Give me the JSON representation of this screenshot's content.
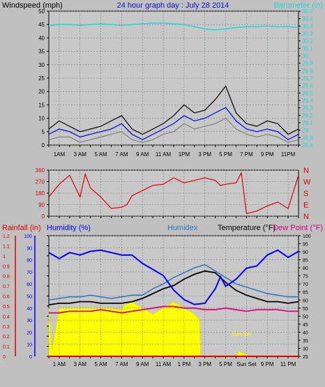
{
  "header": {
    "windspeed_label": "Windspeed (mph)",
    "title": "24 hour graph day : July 28 2014",
    "barometer_label": "Barometer (in)"
  },
  "colors": {
    "frame_bg": "#c0c0c0",
    "plot_bg": "#c8c8c8",
    "title_blue": "#1010e0",
    "barometer_cyan": "#20d8d8",
    "wind_red": "#e00000",
    "rain_red": "#e00000",
    "humidity_blue": "#0000ff",
    "humidex_teal": "#2878c0",
    "dewpoint_magenta": "#e00080",
    "sun_yellow": "#ffff00"
  },
  "x_axis": {
    "tick_labels": [
      "1AM",
      "3 AM",
      "5 AM",
      "7 AM",
      "9 AM",
      "11 AM",
      "1PM",
      "3 PM",
      "5 PM",
      "7 PM",
      "9 PM",
      "11PM"
    ],
    "hours": [
      1,
      3,
      5,
      7,
      9,
      11,
      13,
      15,
      17,
      19,
      21,
      23
    ]
  },
  "bottom_x_axis": {
    "tick_labels": [
      "1 AM",
      "3 AM",
      "5 AM",
      "7 AM",
      "9 AM",
      "11 AM",
      "1 PM",
      "3 PM",
      "5 PM",
      "Sun Set",
      "9 PM",
      "11 PM"
    ],
    "hours": [
      1,
      3,
      5,
      7,
      9,
      11,
      13,
      15,
      17,
      19,
      21,
      23
    ]
  },
  "chart_data": [
    {
      "type": "line",
      "panel": "wind_barometer",
      "xlim": [
        0,
        24
      ],
      "ylabel": "Windspeed (mph)",
      "ylim": [
        0,
        50
      ],
      "yticks": [
        0,
        5,
        10,
        15,
        20,
        25,
        30,
        35,
        40,
        45,
        50
      ],
      "y2label": "Barometer (in)",
      "y2lim": [
        28.8,
        30.6
      ],
      "y2ticks": [
        "28.8",
        "28.9",
        "29",
        "29.1",
        "29.2",
        "29.3",
        "29.4",
        "29.5",
        "29.6",
        "29.7",
        "29.8",
        "29.9",
        "30",
        "30.1",
        "30.2",
        "30.3",
        "30.4",
        "30.5",
        "30.6"
      ],
      "grid": true,
      "series": [
        {
          "name": "Barometer (in)",
          "axis": "right",
          "color": "#20d8d8",
          "x": [
            0,
            1,
            2,
            3,
            4,
            5,
            6,
            7,
            8,
            9,
            10,
            11,
            12,
            13,
            14,
            15,
            16,
            17,
            18,
            19,
            20,
            21,
            22,
            23,
            24
          ],
          "y": [
            30.41,
            30.42,
            30.42,
            30.41,
            30.42,
            30.43,
            30.42,
            30.41,
            30.42,
            30.43,
            30.44,
            30.44,
            30.43,
            30.42,
            30.39,
            30.36,
            30.35,
            30.36,
            30.38,
            30.39,
            30.39,
            30.4,
            30.39,
            30.39,
            30.38
          ]
        },
        {
          "name": "Wind gust",
          "axis": "left",
          "color": "#000000",
          "x": [
            0,
            1,
            2,
            3,
            4,
            5,
            6,
            7,
            8,
            9,
            10,
            11,
            12,
            13,
            14,
            15,
            16,
            17,
            18,
            19,
            20,
            21,
            22,
            23,
            24
          ],
          "y": [
            6,
            9,
            7,
            5,
            6,
            7,
            9,
            11,
            6,
            4,
            6,
            8,
            11,
            15,
            12,
            13,
            17,
            22,
            12,
            8,
            7,
            9,
            8,
            4,
            6
          ]
        },
        {
          "name": "Wind average",
          "axis": "left",
          "color": "#0000e0",
          "x": [
            0,
            1,
            2,
            3,
            4,
            5,
            6,
            7,
            8,
            9,
            10,
            11,
            12,
            13,
            14,
            15,
            16,
            17,
            18,
            19,
            20,
            21,
            22,
            23,
            24
          ],
          "y": [
            4,
            6,
            5,
            3,
            4,
            5,
            6,
            8,
            4,
            2,
            4,
            6,
            8,
            11,
            9,
            10,
            12,
            14,
            9,
            6,
            5,
            6,
            5,
            2,
            4
          ]
        },
        {
          "name": "Wind low",
          "axis": "left",
          "color": "#808080",
          "x": [
            0,
            1,
            2,
            3,
            4,
            5,
            6,
            7,
            8,
            9,
            10,
            11,
            12,
            13,
            14,
            15,
            16,
            17,
            18,
            19,
            20,
            21,
            22,
            23,
            24
          ],
          "y": [
            2,
            3,
            3,
            1,
            2,
            3,
            4,
            5,
            2,
            1,
            2,
            4,
            5,
            8,
            6,
            7,
            8,
            10,
            6,
            4,
            3,
            4,
            3,
            1,
            2
          ]
        }
      ]
    },
    {
      "type": "line",
      "panel": "wind_direction",
      "xlim": [
        0,
        24
      ],
      "ylim": [
        0,
        360
      ],
      "yticks": [
        0,
        90,
        180,
        270,
        360
      ],
      "right_labels": [
        "N",
        "W",
        "S",
        "E",
        "N"
      ],
      "grid": true,
      "series": [
        {
          "name": "Wind direction",
          "color": "#e00000",
          "x": [
            0,
            1,
            2,
            3,
            3.5,
            4,
            5,
            6,
            7,
            7.5,
            8,
            9,
            10,
            11,
            12,
            13,
            14,
            15,
            16,
            16.5,
            17,
            18,
            18.5,
            19,
            20,
            21,
            22,
            23,
            24
          ],
          "y": [
            150,
            250,
            320,
            150,
            330,
            220,
            150,
            60,
            70,
            90,
            160,
            200,
            240,
            250,
            300,
            260,
            280,
            300,
            280,
            240,
            250,
            260,
            340,
            20,
            40,
            80,
            110,
            60,
            320
          ]
        }
      ]
    },
    {
      "type": "line",
      "panel": "temp_humidity_rain",
      "xlim": [
        0,
        24
      ],
      "ylim": [
        0,
        100
      ],
      "yticks": [
        0,
        10,
        20,
        30,
        40,
        50,
        60,
        70,
        80,
        90,
        100
      ],
      "rain_ticks": [
        "0",
        "0.1",
        "0.2",
        "0.3",
        "0.4",
        "0.5",
        "0.6",
        "0.7",
        "0.8",
        "0.9",
        "1",
        "1.1",
        "1.2"
      ],
      "temp_ticks": [
        25,
        30,
        35,
        40,
        45,
        50,
        55,
        60,
        65,
        70,
        75,
        80,
        85,
        90,
        95,
        100
      ],
      "labels": {
        "rainfall": "Rainfall (in)",
        "humidity": "Humidity (%)",
        "humidex": "Humidex",
        "temperature": "Temperature (°F)",
        "dew_point": "Dew Point (°F)"
      },
      "annotation": "Sun Set",
      "grid": true,
      "series": [
        {
          "name": "Humidity (%)",
          "axis": "left",
          "color": "#0000ff",
          "x": [
            0,
            1,
            2,
            3,
            4,
            5,
            6,
            7,
            8,
            9,
            10,
            11,
            12,
            13,
            14,
            15,
            16,
            16.5,
            17,
            18,
            19,
            20,
            21,
            22,
            23,
            24
          ],
          "y": [
            86,
            81,
            86,
            84,
            87,
            88,
            86,
            84,
            84,
            77,
            72,
            67,
            55,
            47,
            43,
            44,
            56,
            66,
            58,
            64,
            73,
            75,
            84,
            88,
            82,
            87
          ]
        },
        {
          "name": "Humidex",
          "axis": "temp",
          "color": "#2878c0",
          "x": [
            0,
            1,
            2,
            3,
            4,
            5,
            6,
            7,
            8,
            9,
            10,
            11,
            12,
            13,
            14,
            15,
            16,
            17,
            18,
            19,
            20,
            21,
            22,
            23,
            24
          ],
          "y": [
            60,
            61,
            62,
            62,
            63,
            62,
            61,
            62,
            63,
            63,
            67,
            70,
            74,
            77,
            80,
            82,
            78,
            74,
            70,
            68,
            66,
            64,
            63,
            62,
            62
          ]
        },
        {
          "name": "Temperature (°F)",
          "axis": "temp",
          "color": "#000000",
          "x": [
            0,
            1,
            2,
            3,
            4,
            5,
            6,
            7,
            8,
            9,
            10,
            11,
            12,
            13,
            14,
            15,
            16,
            17,
            18,
            19,
            20,
            21,
            22,
            23,
            24
          ],
          "y": [
            57,
            58,
            58,
            59,
            59,
            58,
            58,
            58,
            59,
            61,
            64,
            67,
            69,
            73,
            76,
            78,
            77,
            71,
            66,
            63,
            61,
            59,
            59,
            58,
            59
          ]
        },
        {
          "name": "Dew Point (°F)",
          "axis": "temp",
          "color": "#e00080",
          "x": [
            0,
            1,
            2,
            3,
            4,
            5,
            6,
            7,
            8,
            9,
            10,
            11,
            12,
            13,
            14,
            15,
            16,
            17,
            18,
            19,
            20,
            21,
            22,
            23,
            24
          ],
          "y": [
            52,
            52,
            53,
            53,
            53,
            54,
            53,
            52,
            53,
            54,
            55,
            56,
            56,
            55,
            55,
            54,
            54,
            55,
            54,
            53,
            54,
            54,
            54,
            53,
            53
          ]
        },
        {
          "name": "Solar",
          "axis": "left",
          "color": "#ffff00",
          "x": [
            0,
            0.3,
            1,
            2,
            3,
            4,
            5,
            6,
            7,
            7.2,
            8,
            9,
            10,
            11,
            12,
            13,
            14,
            14.5,
            14.6,
            18,
            18.3,
            18.8,
            19.2,
            24
          ],
          "y": [
            40,
            5,
            40,
            40,
            40,
            40,
            40,
            40,
            38,
            42,
            45,
            40,
            35,
            40,
            45,
            40,
            35,
            30,
            0,
            0,
            4,
            2,
            0,
            0
          ]
        },
        {
          "name": "Rainfall (in)",
          "axis": "rain",
          "color": "#e00000",
          "x": [
            0,
            24
          ],
          "y": [
            0,
            0
          ]
        }
      ]
    }
  ]
}
